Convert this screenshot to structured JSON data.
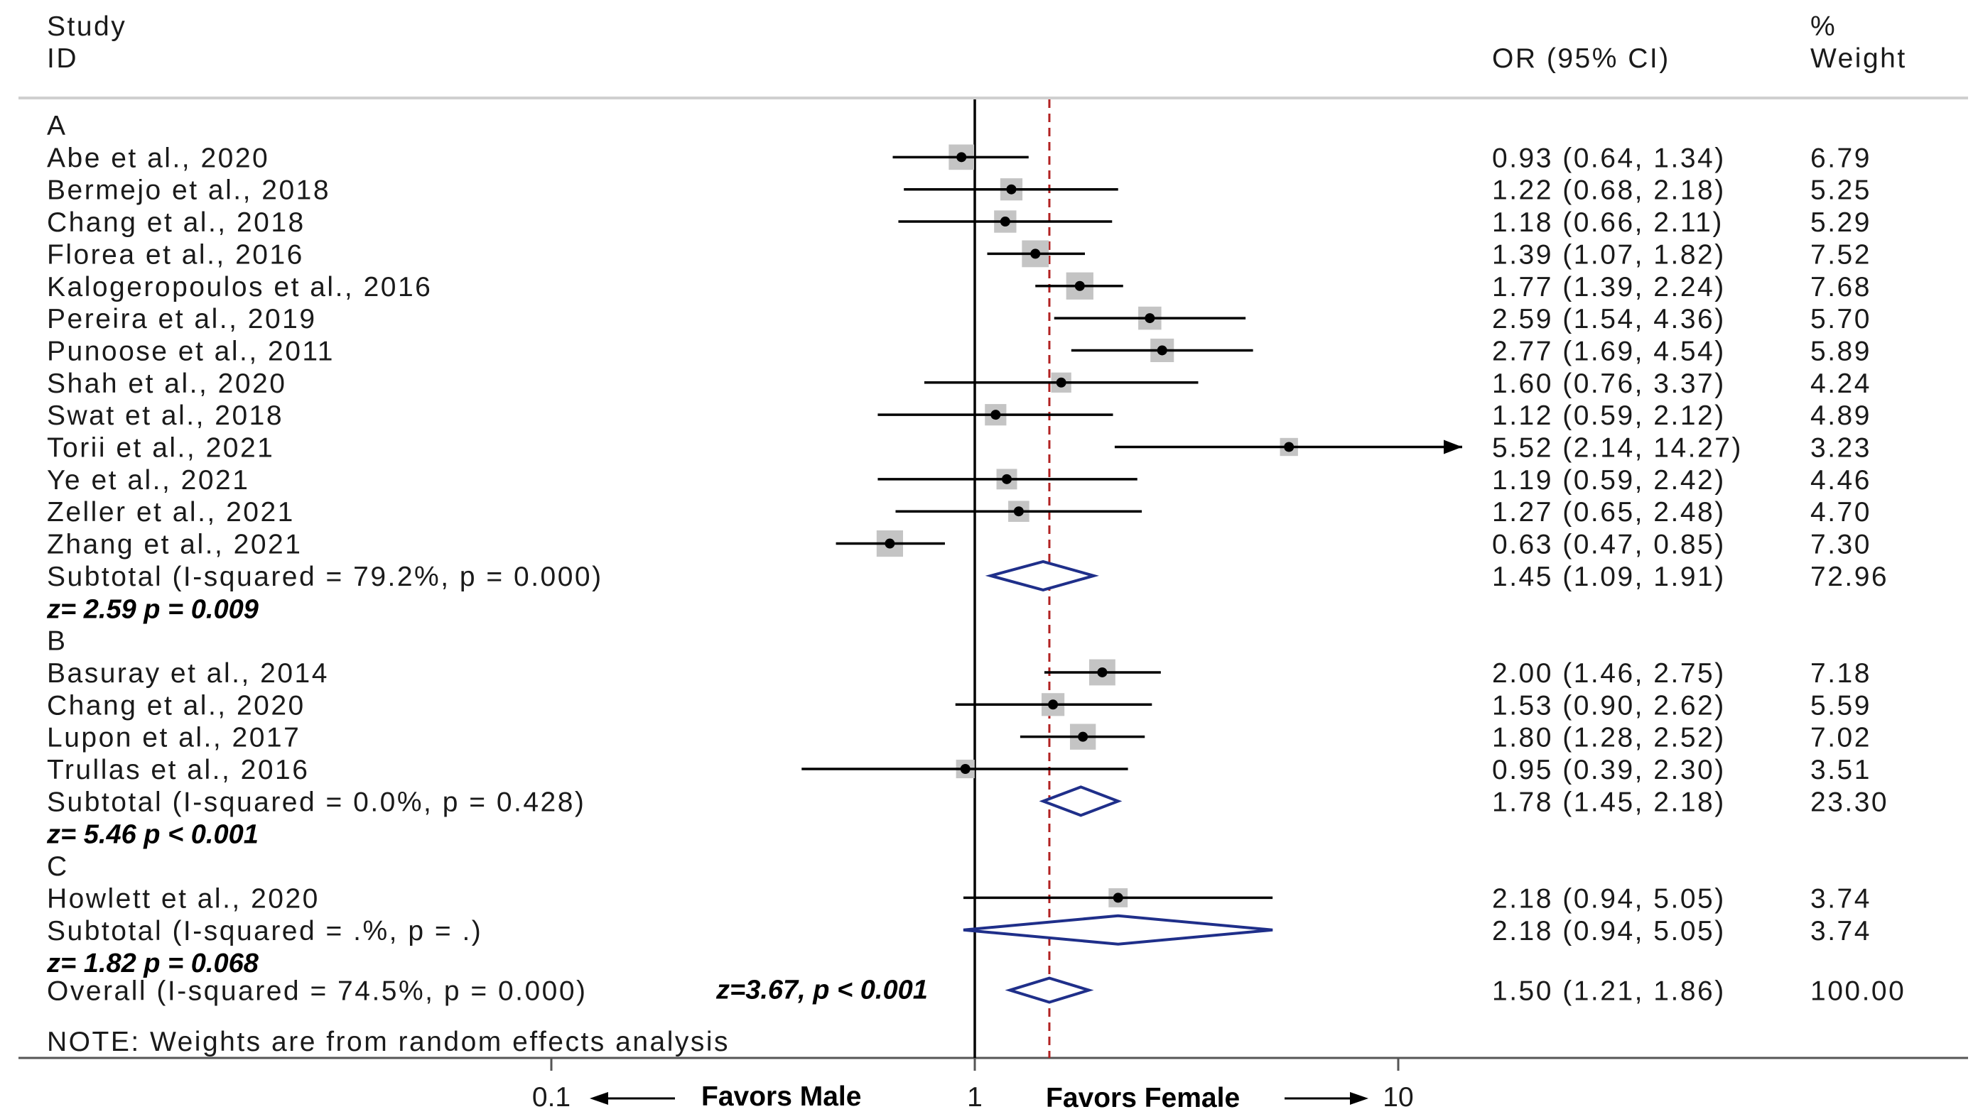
{
  "header": {
    "study_line1": "Study",
    "study_line2": "ID",
    "or_header": "OR (95% CI)",
    "weight_line1": "%",
    "weight_line2": "Weight"
  },
  "groups": [
    {
      "label": "A",
      "studies": [
        {
          "name": "Abe et al., 2020",
          "or": 0.93,
          "lo": 0.64,
          "hi": 1.34,
          "ci_text": "0.93 (0.64, 1.34)",
          "weight": "6.79"
        },
        {
          "name": "Bermejo et al., 2018",
          "or": 1.22,
          "lo": 0.68,
          "hi": 2.18,
          "ci_text": "1.22 (0.68, 2.18)",
          "weight": "5.25"
        },
        {
          "name": "Chang et al., 2018",
          "or": 1.18,
          "lo": 0.66,
          "hi": 2.11,
          "ci_text": "1.18 (0.66, 2.11)",
          "weight": "5.29"
        },
        {
          "name": "Florea et al., 2016",
          "or": 1.39,
          "lo": 1.07,
          "hi": 1.82,
          "ci_text": "1.39 (1.07, 1.82)",
          "weight": "7.52"
        },
        {
          "name": "Kalogeropoulos et al., 2016",
          "or": 1.77,
          "lo": 1.39,
          "hi": 2.24,
          "ci_text": "1.77 (1.39, 2.24)",
          "weight": "7.68"
        },
        {
          "name": "Pereira et al., 2019",
          "or": 2.59,
          "lo": 1.54,
          "hi": 4.36,
          "ci_text": "2.59 (1.54, 4.36)",
          "weight": "5.70"
        },
        {
          "name": "Punoose et al., 2011",
          "or": 2.77,
          "lo": 1.69,
          "hi": 4.54,
          "ci_text": "2.77 (1.69, 4.54)",
          "weight": "5.89"
        },
        {
          "name": "Shah et al., 2020",
          "or": 1.6,
          "lo": 0.76,
          "hi": 3.37,
          "ci_text": "1.60 (0.76, 3.37)",
          "weight": "4.24"
        },
        {
          "name": "Swat et al., 2018",
          "or": 1.12,
          "lo": 0.59,
          "hi": 2.12,
          "ci_text": "1.12 (0.59, 2.12)",
          "weight": "4.89"
        },
        {
          "name": "Torii et al., 2021",
          "or": 5.52,
          "lo": 2.14,
          "hi": 14.27,
          "ci_text": "5.52 (2.14, 14.27)",
          "weight": "3.23"
        },
        {
          "name": "Ye et al., 2021",
          "or": 1.19,
          "lo": 0.59,
          "hi": 2.42,
          "ci_text": "1.19 (0.59, 2.42)",
          "weight": "4.46"
        },
        {
          "name": "Zeller et al., 2021",
          "or": 1.27,
          "lo": 0.65,
          "hi": 2.48,
          "ci_text": "1.27 (0.65, 2.48)",
          "weight": "4.70"
        },
        {
          "name": "Zhang et al., 2021",
          "or": 0.63,
          "lo": 0.47,
          "hi": 0.85,
          "ci_text": "0.63 (0.47, 0.85)",
          "weight": "7.30"
        }
      ],
      "subtotal": {
        "label": "Subtotal  (I-squared = 79.2%, p = 0.000)",
        "or": 1.45,
        "lo": 1.09,
        "hi": 1.91,
        "ci_text": "1.45 (1.09, 1.91)",
        "weight": "72.96"
      },
      "test": "z= 2.59     p = 0.009"
    },
    {
      "label": "B",
      "studies": [
        {
          "name": "Basuray et al., 2014",
          "or": 2.0,
          "lo": 1.46,
          "hi": 2.75,
          "ci_text": "2.00 (1.46, 2.75)",
          "weight": "7.18"
        },
        {
          "name": "Chang et al., 2020",
          "or": 1.53,
          "lo": 0.9,
          "hi": 2.62,
          "ci_text": "1.53 (0.90, 2.62)",
          "weight": "5.59"
        },
        {
          "name": "Lupon et al., 2017",
          "or": 1.8,
          "lo": 1.28,
          "hi": 2.52,
          "ci_text": "1.80 (1.28, 2.52)",
          "weight": "7.02"
        },
        {
          "name": "Trullas et al., 2016",
          "or": 0.95,
          "lo": 0.39,
          "hi": 2.3,
          "ci_text": "0.95 (0.39, 2.30)",
          "weight": "3.51"
        }
      ],
      "subtotal": {
        "label": "Subtotal  (I-squared = 0.0%, p = 0.428)",
        "or": 1.78,
        "lo": 1.45,
        "hi": 2.18,
        "ci_text": "1.78 (1.45, 2.18)",
        "weight": "23.30"
      },
      "test": "z= 5.46     p < 0.001"
    },
    {
      "label": "C",
      "studies": [
        {
          "name": "Howlett et al., 2020",
          "or": 2.18,
          "lo": 0.94,
          "hi": 5.05,
          "ci_text": "2.18 (0.94, 5.05)",
          "weight": "3.74"
        }
      ],
      "subtotal": {
        "label": "Subtotal  (I-squared = .%, p = .)",
        "or": 2.18,
        "lo": 0.94,
        "hi": 5.05,
        "ci_text": "2.18 (0.94, 5.05)",
        "weight": "3.74"
      },
      "test": "z= 1.82     p = 0.068"
    }
  ],
  "overall": {
    "label": "Overall  (I-squared = 74.5%, p = 0.000)",
    "test": "z=3.67, p < 0.001",
    "or": 1.5,
    "lo": 1.21,
    "hi": 1.86,
    "ci_text": "1.50 (1.21, 1.86)",
    "weight": "100.00"
  },
  "note": "NOTE: Weights are from random effects analysis",
  "axis": {
    "ticks": [
      {
        "value": 0.1,
        "label": "0.1"
      },
      {
        "value": 1,
        "label": "1"
      },
      {
        "value": 10,
        "label": "10"
      }
    ],
    "left_label": "Favors Male",
    "right_label": "Favors Female"
  },
  "colors": {
    "ci_line": "#000000",
    "weight_box": "#c4c4c4",
    "diamond": "#1f2f8a",
    "overall_line": "#b22222",
    "separator": "#cfcfcf"
  },
  "chart_data": {
    "type": "forest",
    "scale": "log",
    "xlim": [
      0.1,
      10
    ],
    "measure": "OR (95% CI)",
    "reference_value": 1,
    "overall_estimate": 1.5,
    "series": [
      {
        "name": "A",
        "categories": [
          "Abe et al., 2020",
          "Bermejo et al., 2018",
          "Chang et al., 2018",
          "Florea et al., 2016",
          "Kalogeropoulos et al., 2016",
          "Pereira et al., 2019",
          "Punoose et al., 2011",
          "Shah et al., 2020",
          "Swat et al., 2018",
          "Torii et al., 2021",
          "Ye et al., 2021",
          "Zeller et al., 2021",
          "Zhang et al., 2021"
        ],
        "values": [
          0.93,
          1.22,
          1.18,
          1.39,
          1.77,
          2.59,
          2.77,
          1.6,
          1.12,
          5.52,
          1.19,
          1.27,
          0.63
        ],
        "pooled": 1.45
      },
      {
        "name": "B",
        "categories": [
          "Basuray et al., 2014",
          "Chang et al., 2020",
          "Lupon et al., 2017",
          "Trullas et al., 2016"
        ],
        "values": [
          2.0,
          1.53,
          1.8,
          0.95
        ],
        "pooled": 1.78
      },
      {
        "name": "C",
        "categories": [
          "Howlett et al., 2020"
        ],
        "values": [
          2.18
        ],
        "pooled": 2.18
      }
    ]
  }
}
